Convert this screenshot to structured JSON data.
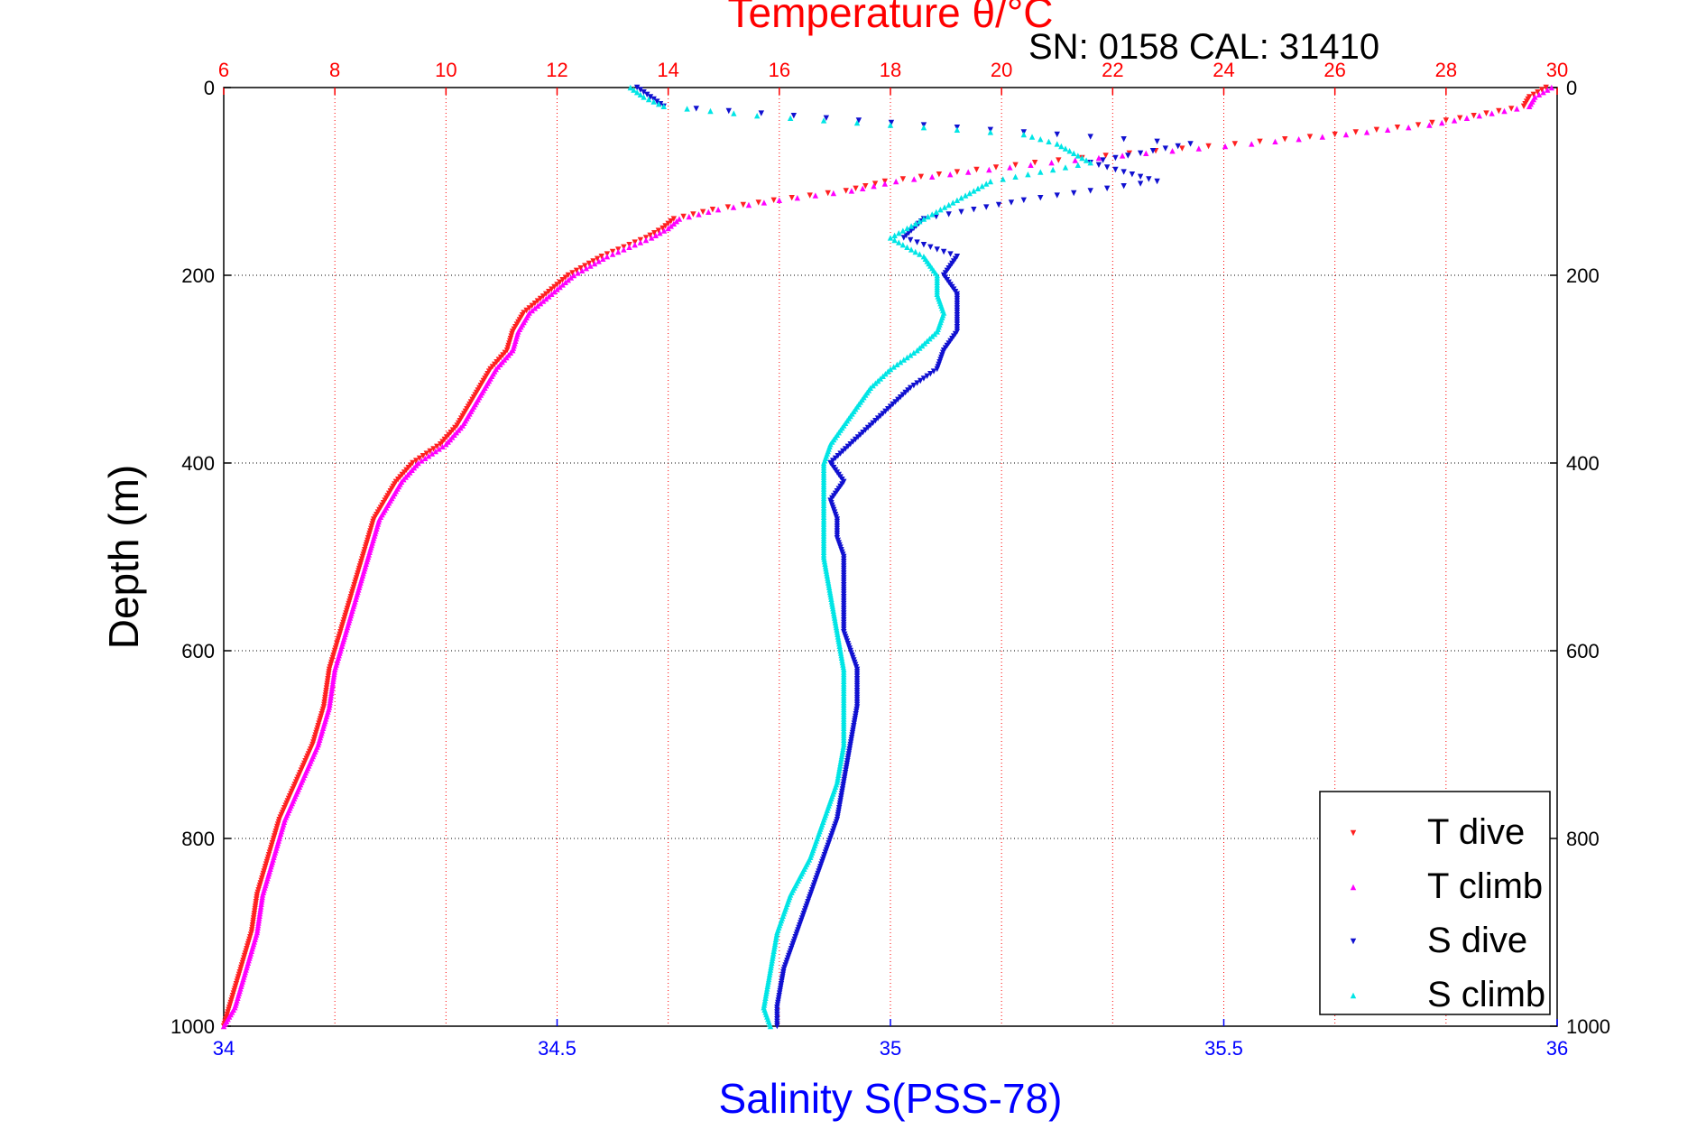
{
  "title": "Temperature θ/°C",
  "subtitle": "SN: 0158  CAL: 31410",
  "colors": {
    "temperature": "#ff0000",
    "salinity": "#0000ff",
    "t_dive": "#ff2020",
    "t_climb": "#ff00ff",
    "s_dive": "#1010d0",
    "s_climb": "#00e5e5"
  },
  "chart_data": {
    "type": "scatter",
    "title": "Temperature θ/°C",
    "xlabel": "Salinity S(PSS-78)",
    "x2label": "Temperature θ/°C",
    "ylabel": "Depth (m)",
    "xlim": [
      34,
      36
    ],
    "x2lim": [
      6,
      30
    ],
    "ylim": [
      0,
      1000
    ],
    "y_reversed": true,
    "grid": true,
    "legend_position": "bottom-right",
    "x_ticks": [
      "34",
      "34.5",
      "35",
      "35.5",
      "36"
    ],
    "x2_ticks": [
      "6",
      "8",
      "10",
      "12",
      "14",
      "16",
      "18",
      "20",
      "22",
      "24",
      "26",
      "28",
      "30"
    ],
    "y_ticks": [
      "0",
      "200",
      "400",
      "600",
      "800",
      "1000"
    ],
    "series": [
      {
        "name": "T dive",
        "axis": "temperature",
        "depth": [
          0,
          10,
          20,
          30,
          40,
          50,
          60,
          70,
          80,
          90,
          100,
          110,
          120,
          130,
          140,
          150,
          160,
          170,
          180,
          200,
          220,
          240,
          260,
          280,
          300,
          320,
          340,
          360,
          380,
          400,
          420,
          440,
          460,
          480,
          500,
          540,
          580,
          620,
          660,
          700,
          740,
          780,
          820,
          860,
          900,
          940,
          980,
          1000
        ],
        "temp": [
          29.8,
          29.5,
          29.4,
          28.5,
          27.5,
          26.0,
          24.2,
          22.3,
          20.6,
          19.2,
          17.9,
          17.2,
          15.9,
          14.8,
          14.1,
          13.9,
          13.6,
          13.2,
          12.8,
          12.2,
          11.8,
          11.4,
          11.2,
          11.1,
          10.8,
          10.6,
          10.4,
          10.2,
          9.9,
          9.4,
          9.1,
          8.9,
          8.7,
          8.6,
          8.5,
          8.3,
          8.1,
          7.9,
          7.8,
          7.6,
          7.3,
          7.0,
          6.8,
          6.6,
          6.5,
          6.3,
          6.1,
          6.0
        ]
      },
      {
        "name": "T climb",
        "axis": "temperature",
        "depth": [
          0,
          10,
          20,
          30,
          40,
          50,
          60,
          70,
          80,
          90,
          100,
          110,
          120,
          130,
          140,
          150,
          160,
          170,
          180,
          200,
          220,
          240,
          260,
          280,
          300,
          320,
          340,
          360,
          380,
          400,
          420,
          440,
          460,
          480,
          500,
          540,
          580,
          620,
          660,
          700,
          740,
          780,
          820,
          860,
          900,
          940,
          980,
          1000
        ],
        "temp": [
          29.9,
          29.6,
          29.5,
          28.6,
          27.7,
          26.2,
          24.5,
          22.6,
          20.9,
          19.4,
          18.1,
          17.3,
          16.0,
          14.9,
          14.2,
          14.0,
          13.7,
          13.3,
          12.9,
          12.3,
          11.9,
          11.5,
          11.3,
          11.2,
          10.9,
          10.7,
          10.5,
          10.3,
          10.0,
          9.5,
          9.2,
          9.0,
          8.8,
          8.7,
          8.6,
          8.4,
          8.2,
          8.0,
          7.9,
          7.7,
          7.4,
          7.1,
          6.9,
          6.7,
          6.6,
          6.4,
          6.2,
          6.0
        ]
      },
      {
        "name": "S dive",
        "axis": "salinity",
        "depth": [
          0,
          10,
          20,
          40,
          60,
          80,
          100,
          120,
          140,
          160,
          180,
          200,
          220,
          240,
          260,
          280,
          300,
          320,
          340,
          360,
          380,
          400,
          420,
          440,
          460,
          480,
          500,
          540,
          580,
          620,
          660,
          700,
          740,
          780,
          820,
          860,
          900,
          940,
          980,
          1000
        ],
        "sal": [
          34.62,
          34.64,
          34.66,
          35.05,
          35.45,
          35.3,
          35.4,
          35.2,
          35.05,
          35.02,
          35.1,
          35.08,
          35.1,
          35.1,
          35.1,
          35.08,
          35.07,
          35.03,
          35.0,
          34.97,
          34.94,
          34.91,
          34.93,
          34.91,
          34.92,
          34.92,
          34.93,
          34.93,
          34.93,
          34.95,
          34.95,
          34.94,
          34.93,
          34.92,
          34.9,
          34.88,
          34.86,
          34.84,
          34.83,
          34.83
        ]
      },
      {
        "name": "S climb",
        "axis": "salinity",
        "depth": [
          0,
          10,
          20,
          30,
          40,
          50,
          60,
          80,
          100,
          120,
          140,
          160,
          180,
          200,
          220,
          240,
          260,
          280,
          300,
          320,
          340,
          360,
          380,
          400,
          420,
          440,
          460,
          480,
          500,
          540,
          580,
          620,
          660,
          700,
          740,
          780,
          820,
          860,
          900,
          940,
          980,
          1000
        ],
        "sal": [
          34.61,
          34.63,
          34.66,
          34.8,
          35.0,
          35.2,
          35.25,
          35.3,
          35.15,
          35.1,
          35.05,
          35.0,
          35.05,
          35.07,
          35.07,
          35.08,
          35.07,
          35.04,
          35.0,
          34.97,
          34.95,
          34.93,
          34.91,
          34.9,
          34.9,
          34.9,
          34.9,
          34.9,
          34.9,
          34.91,
          34.92,
          34.93,
          34.93,
          34.93,
          34.92,
          34.9,
          34.88,
          34.85,
          34.83,
          34.82,
          34.81,
          34.82
        ]
      }
    ],
    "legend": [
      "T dive",
      "T climb",
      "S dive",
      "S climb"
    ]
  }
}
